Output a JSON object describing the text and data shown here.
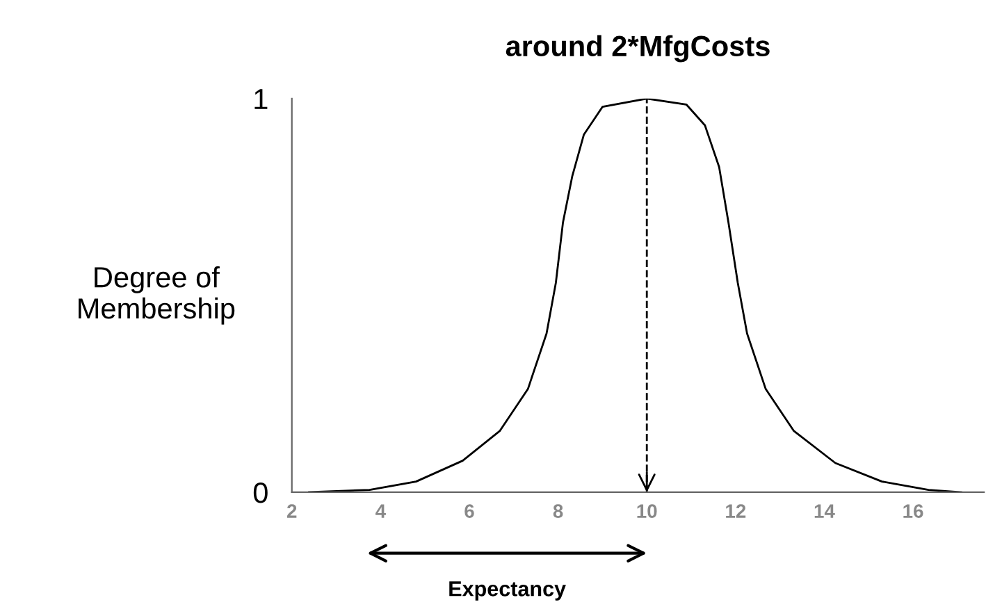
{
  "chart_data": {
    "type": "line",
    "title": "around 2*MfgCosts",
    "ylabel": "Degree of\nMembership",
    "x": [
      2.39,
      3.75,
      4.8,
      5.85,
      6.69,
      7.32,
      7.74,
      7.95,
      8.11,
      8.32,
      8.58,
      9.0,
      10.0,
      10.89,
      11.31,
      11.63,
      11.84,
      12.05,
      12.26,
      12.68,
      13.31,
      14.25,
      15.3,
      16.35,
      17.09
    ],
    "series": [
      {
        "color": "#000000",
        "values": [
          0,
          0.006,
          0.027,
          0.08,
          0.156,
          0.262,
          0.403,
          0.532,
          0.685,
          0.803,
          0.908,
          0.979,
          1,
          0.985,
          0.932,
          0.826,
          0.685,
          0.532,
          0.403,
          0.262,
          0.156,
          0.074,
          0.027,
          0.006,
          0
        ]
      }
    ],
    "xlim": [
      2,
      17.6
    ],
    "ylim": [
      0,
      1
    ],
    "xticks": [
      2,
      4,
      6,
      8,
      10,
      12,
      14,
      16
    ],
    "yticks": [
      0,
      1
    ],
    "ref_lines": [
      {
        "axis": "x",
        "value": 10,
        "label": null,
        "color": "#000000",
        "line_style": "dashed"
      }
    ],
    "annotations": [
      "Expectancy"
    ],
    "grid": false,
    "legend": false,
    "marker": "none",
    "line_style": "solid"
  }
}
